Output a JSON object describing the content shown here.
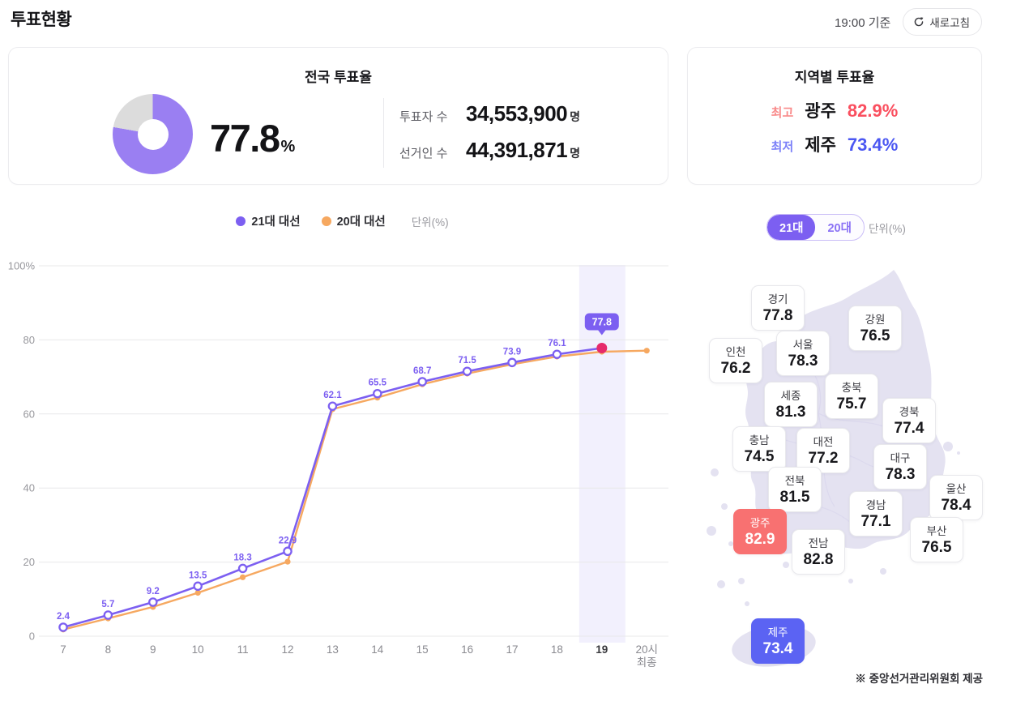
{
  "header": {
    "title": "투표현황",
    "timestamp": "19:00 기준",
    "refresh_label": "새로고침"
  },
  "national": {
    "title": "전국 투표율",
    "percent": 77.8,
    "percent_unit": "%",
    "donut_color": "#9a7ff2",
    "donut_rest_color": "#dcdcdc",
    "rows": [
      {
        "label": "투표자 수",
        "value": "34,553,900",
        "suffix": "명"
      },
      {
        "label": "선거인 수",
        "value": "44,391,871",
        "suffix": "명"
      }
    ]
  },
  "regional": {
    "title": "지역별 투표율",
    "rows": [
      {
        "label": "최고",
        "region": "광주",
        "value": "82.9%",
        "type": "high"
      },
      {
        "label": "최저",
        "region": "제주",
        "value": "73.4%",
        "type": "low"
      }
    ]
  },
  "chart_data": {
    "type": "line",
    "unit_label": "단위(%)",
    "x_categories": [
      "7",
      "8",
      "9",
      "10",
      "11",
      "12",
      "13",
      "14",
      "15",
      "16",
      "17",
      "18",
      "19",
      "20시\n최종"
    ],
    "series": [
      {
        "name": "21대 대선",
        "color": "#7c5ff1",
        "values": [
          2.4,
          5.7,
          9.2,
          13.5,
          18.3,
          22.9,
          62.1,
          65.5,
          68.7,
          71.5,
          73.9,
          76.1,
          77.8,
          null
        ]
      },
      {
        "name": "20대 대선",
        "color": "#f6a860",
        "values": [
          1.8,
          4.8,
          7.9,
          11.7,
          15.9,
          20.1,
          61.3,
          64.4,
          68.0,
          70.9,
          73.4,
          75.5,
          76.8,
          77.1
        ]
      }
    ],
    "ylim": [
      0,
      100
    ],
    "yticks": [
      0,
      20,
      40,
      60,
      80,
      100
    ],
    "ytick_labels": [
      "0",
      "20",
      "40",
      "60",
      "80",
      "100%"
    ],
    "grid": true,
    "legend_position": "top-center",
    "highlight_x": "19",
    "current_point": {
      "x": "19",
      "value": 77.8,
      "badge": "77.8",
      "dot_color": "#e62a6b",
      "badge_color": "#7c5ff1"
    }
  },
  "map": {
    "toggle": {
      "options": [
        "21대",
        "20대"
      ],
      "selected": "21대"
    },
    "unit_label": "단위(%)",
    "attribution": "※ 중앙선거관리위원회 제공",
    "fill_color": "#e4e2f1",
    "regions": [
      {
        "id": "gyeonggi",
        "name": "경기",
        "value": 77.8,
        "type": "normal"
      },
      {
        "id": "gangwon",
        "name": "강원",
        "value": 76.5,
        "type": "normal"
      },
      {
        "id": "seoul",
        "name": "서울",
        "value": 78.3,
        "type": "normal"
      },
      {
        "id": "incheon",
        "name": "인천",
        "value": 76.2,
        "type": "normal"
      },
      {
        "id": "chungbuk",
        "name": "충북",
        "value": 75.7,
        "type": "normal"
      },
      {
        "id": "sejong",
        "name": "세종",
        "value": 81.3,
        "type": "normal"
      },
      {
        "id": "gyeongbuk",
        "name": "경북",
        "value": 77.4,
        "type": "normal"
      },
      {
        "id": "chungnam",
        "name": "충남",
        "value": 74.5,
        "type": "normal"
      },
      {
        "id": "daejeon",
        "name": "대전",
        "value": 77.2,
        "type": "normal"
      },
      {
        "id": "daegu",
        "name": "대구",
        "value": 78.3,
        "type": "normal"
      },
      {
        "id": "jeonbuk",
        "name": "전북",
        "value": 81.5,
        "type": "normal"
      },
      {
        "id": "ulsan",
        "name": "울산",
        "value": 78.4,
        "type": "normal"
      },
      {
        "id": "gyeongnam",
        "name": "경남",
        "value": 77.1,
        "type": "normal"
      },
      {
        "id": "gwangju",
        "name": "광주",
        "value": 82.9,
        "type": "high"
      },
      {
        "id": "busan",
        "name": "부산",
        "value": 76.5,
        "type": "normal"
      },
      {
        "id": "jeonnam",
        "name": "전남",
        "value": 82.8,
        "type": "normal"
      },
      {
        "id": "jeju",
        "name": "제주",
        "value": 73.4,
        "type": "low"
      }
    ]
  }
}
